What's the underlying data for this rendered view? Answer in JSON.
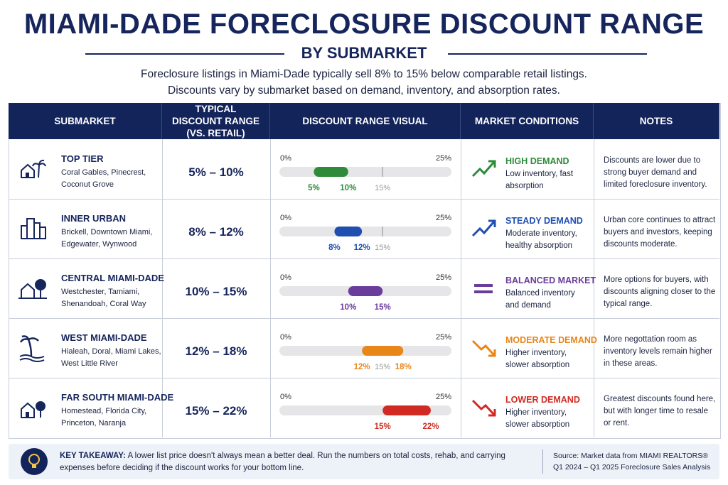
{
  "header": {
    "title": "MIAMI-DADE FORECLOSURE DISCOUNT RANGE",
    "subtitle": "BY SUBMARKET",
    "intro": [
      "Foreclosure listings in Miami-Dade typically sell 8% to 15% below comparable retail listings.",
      "Discounts vary by submarket based on demand, inventory, and absorption rates."
    ]
  },
  "table": {
    "columns": [
      "SUBMARKET",
      "TYPICAL DISCOUNT RANGE (VS. RETAIL)",
      "DISCOUNT RANGE VISUAL",
      "MARKET CONDITIONS",
      "NOTES"
    ],
    "scale": {
      "min": {
        "value": 0,
        "label": "0%"
      },
      "max": {
        "value": 25,
        "label": "25%"
      }
    },
    "rows": [
      {
        "name": "TOP TIER",
        "areas": "Coral Gables, Pinecrest, Coconut Grove",
        "range": "5% – 10%",
        "low": {
          "value": 5,
          "label": "5%"
        },
        "high": {
          "value": 10,
          "label": "10%"
        },
        "benchmark": {
          "value": 15,
          "label": "15%"
        },
        "color": "#2e8b3a",
        "condition": "HIGH DEMAND",
        "condition_detail": "Low inventory, fast absorption",
        "notes": "Discounts are lower due to strong buyer demand and limited foreclosure inventory."
      },
      {
        "name": "INNER URBAN",
        "areas": "Brickell, Downtown Miami, Edgewater, Wynwood",
        "range": "8% – 12%",
        "low": {
          "value": 8,
          "label": "8%"
        },
        "high": {
          "value": 12,
          "label": "12%"
        },
        "benchmark": {
          "value": 15,
          "label": "15%"
        },
        "color": "#1f4fb0",
        "condition": "STEADY DEMAND",
        "condition_detail": "Moderate inventory, healthy absorption",
        "notes": "Urban core continues to attract buyers and investors, keeping discounts moderate."
      },
      {
        "name": "CENTRAL MIAMI-DADE",
        "areas": "Westchester, Tamiami, Shenandoah, Coral Way",
        "range": "10% – 15%",
        "low": {
          "value": 10,
          "label": "10%"
        },
        "high": {
          "value": 15,
          "label": "15%"
        },
        "color": "#6a3d9a",
        "condition": "BALANCED MARKET",
        "condition_detail": "Balanced inventory and demand",
        "notes": "More options for buyers, with discounts aligning closer to the typical range."
      },
      {
        "name": "WEST MIAMI-DADE",
        "areas": "Hialeah, Doral, Miami Lakes, West Little River",
        "range": "12% – 18%",
        "low": {
          "value": 12,
          "label": "12%"
        },
        "high": {
          "value": 18,
          "label": "18%"
        },
        "benchmark": {
          "value": 15,
          "label": "15%"
        },
        "color": "#e8861a",
        "condition": "MODERATE DEMAND",
        "condition_detail": "Higher inventory, slower absorption",
        "notes": "More negottation room as inventory levels remain higher in these areas."
      },
      {
        "name": "FAR SOUTH MIAMI-DADE",
        "areas": "Homestead, Florida City, Princeton, Naranja",
        "range": "15% – 22%",
        "low": {
          "value": 15,
          "label": "15%"
        },
        "high": {
          "value": 22,
          "label": "22%"
        },
        "color": "#d12a22",
        "condition": "LOWER DEMAND",
        "condition_detail": "Higher inventory, slower absorption",
        "notes": "Greatest discounts found here, but with longer time to resale or rent."
      }
    ]
  },
  "footer": {
    "takeaway_label": "KEY TAKEAWAY:",
    "takeaway": "A lower list price doesn't always mean a better deal. Run the numbers on total costs, rehab, and carrying expenses before deciding if the discount works for your bottom line.",
    "source": "Source: Market data from MIAMI REALTORS® Q1 2024 – Q1 2025 Foreclosure Sales Analysis"
  }
}
